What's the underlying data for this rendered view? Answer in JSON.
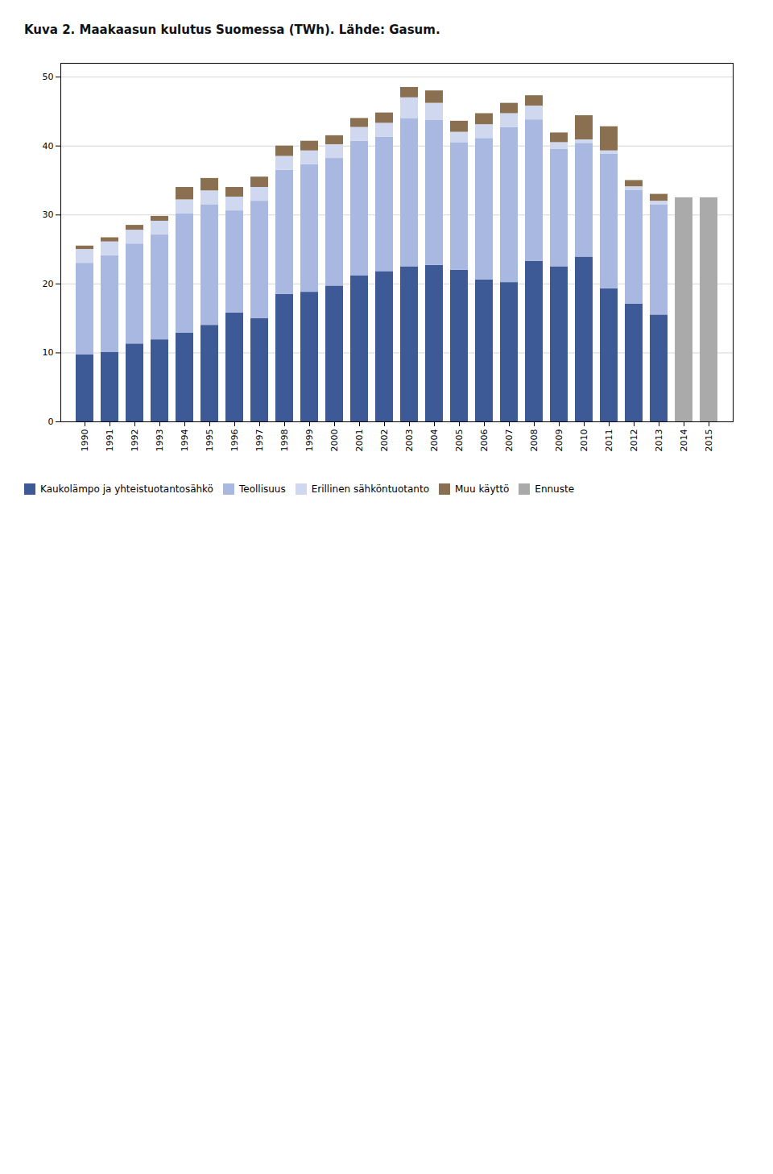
{
  "chart_data": {
    "type": "bar",
    "title": "Kuva 2. Maakaasun kulutus Suomessa (TWh). Lähde: Gasum.",
    "categories": [
      1990,
      1991,
      1992,
      1993,
      1994,
      1995,
      1996,
      1997,
      1998,
      1999,
      2000,
      2001,
      2002,
      2003,
      2004,
      2005,
      2006,
      2007,
      2008,
      2009,
      2010,
      2011,
      2012,
      2013,
      2014,
      2015
    ],
    "series": [
      {
        "name": "Kaukolämpo ja yhteistuotantosähkö",
        "color": "#3d5a96",
        "values": [
          9.7,
          10.1,
          11.3,
          11.9,
          12.9,
          14.0,
          15.8,
          15.0,
          18.5,
          18.8,
          19.7,
          21.2,
          21.8,
          22.5,
          22.7,
          22.0,
          20.6,
          20.2,
          23.3,
          22.5,
          23.9,
          19.3,
          17.1,
          15.5,
          0,
          0
        ]
      },
      {
        "name": "Teollisuus",
        "color": "#a8b8e0",
        "values": [
          13.3,
          14.0,
          14.5,
          15.2,
          17.3,
          17.5,
          14.8,
          17.0,
          18.0,
          18.5,
          18.5,
          19.5,
          19.5,
          21.5,
          21.0,
          18.5,
          20.5,
          22.5,
          20.5,
          17.0,
          16.5,
          19.5,
          16.5,
          16.0,
          0,
          0
        ]
      },
      {
        "name": "Erillinen sähköntuotanto",
        "color": "#d0d8f0",
        "values": [
          2.0,
          2.0,
          2.0,
          2.0,
          2.0,
          2.0,
          2.0,
          2.0,
          2.0,
          2.0,
          2.0,
          2.0,
          2.0,
          3.0,
          2.5,
          1.5,
          2.0,
          2.0,
          2.0,
          1.0,
          0.5,
          0.5,
          0.5,
          0.5,
          0,
          0
        ]
      },
      {
        "name": "Muu käyttö",
        "color": "#8a7050",
        "values": [
          0.5,
          0.6,
          0.7,
          0.7,
          1.8,
          1.8,
          1.4,
          1.5,
          1.5,
          1.4,
          1.3,
          1.3,
          1.5,
          1.5,
          1.8,
          1.6,
          1.6,
          1.5,
          1.5,
          1.4,
          3.5,
          3.5,
          0.9,
          1.0,
          0,
          0
        ]
      },
      {
        "name": "Ennuste",
        "color": "#aaaaaa",
        "values": [
          0,
          0,
          0,
          0,
          0,
          0,
          0,
          0,
          0,
          0,
          0,
          0,
          0,
          0,
          0,
          0,
          0,
          0,
          0,
          0,
          0,
          0,
          0,
          0,
          32.5,
          32.5
        ]
      }
    ],
    "stacked": true,
    "ylim": [
      0,
      52
    ],
    "yticks": [
      0,
      10,
      20,
      30,
      40,
      50
    ],
    "grid": true,
    "legend": "bottom"
  }
}
